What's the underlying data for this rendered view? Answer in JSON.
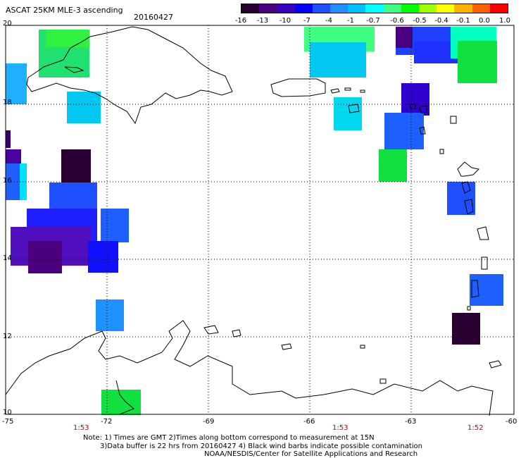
{
  "title": "ASCAT 25KM MLE-3 ascending",
  "date": "20160427",
  "colorbar": {
    "labels": [
      "-16",
      "-13",
      "-10",
      "-7",
      "-4",
      "-1",
      "-0.7",
      "-0.6",
      "-0.5",
      "-0.4",
      "-0.1",
      "0.0",
      "1.0"
    ],
    "colors": [
      "#2a0033",
      "#4b0082",
      "#3a00c0",
      "#0000ff",
      "#1e50ff",
      "#1e90ff",
      "#00bfff",
      "#00ffff",
      "#40ff80",
      "#00ff00",
      "#a0ff00",
      "#ffff00",
      "#ffb000",
      "#ff6000",
      "#ff0000"
    ]
  },
  "axes": {
    "lon_labels": [
      "-75",
      "-72",
      "-69",
      "-66",
      "-63",
      "-60"
    ],
    "lat_labels": [
      "20",
      "18",
      "16",
      "14",
      "12",
      "10"
    ]
  },
  "times": [
    "1:53",
    "1:53",
    "1:52"
  ],
  "notes": {
    "line1": "Note: 1) Times are GMT 2)Times along bottom correspond to measurement at 15N",
    "line2": "3)Data buffer is 22 hrs from 20160427 4) Black wind barbs indicate possible contamination",
    "line3": "NOAA/NESDIS/Center for Satellite Applications and Research"
  }
}
